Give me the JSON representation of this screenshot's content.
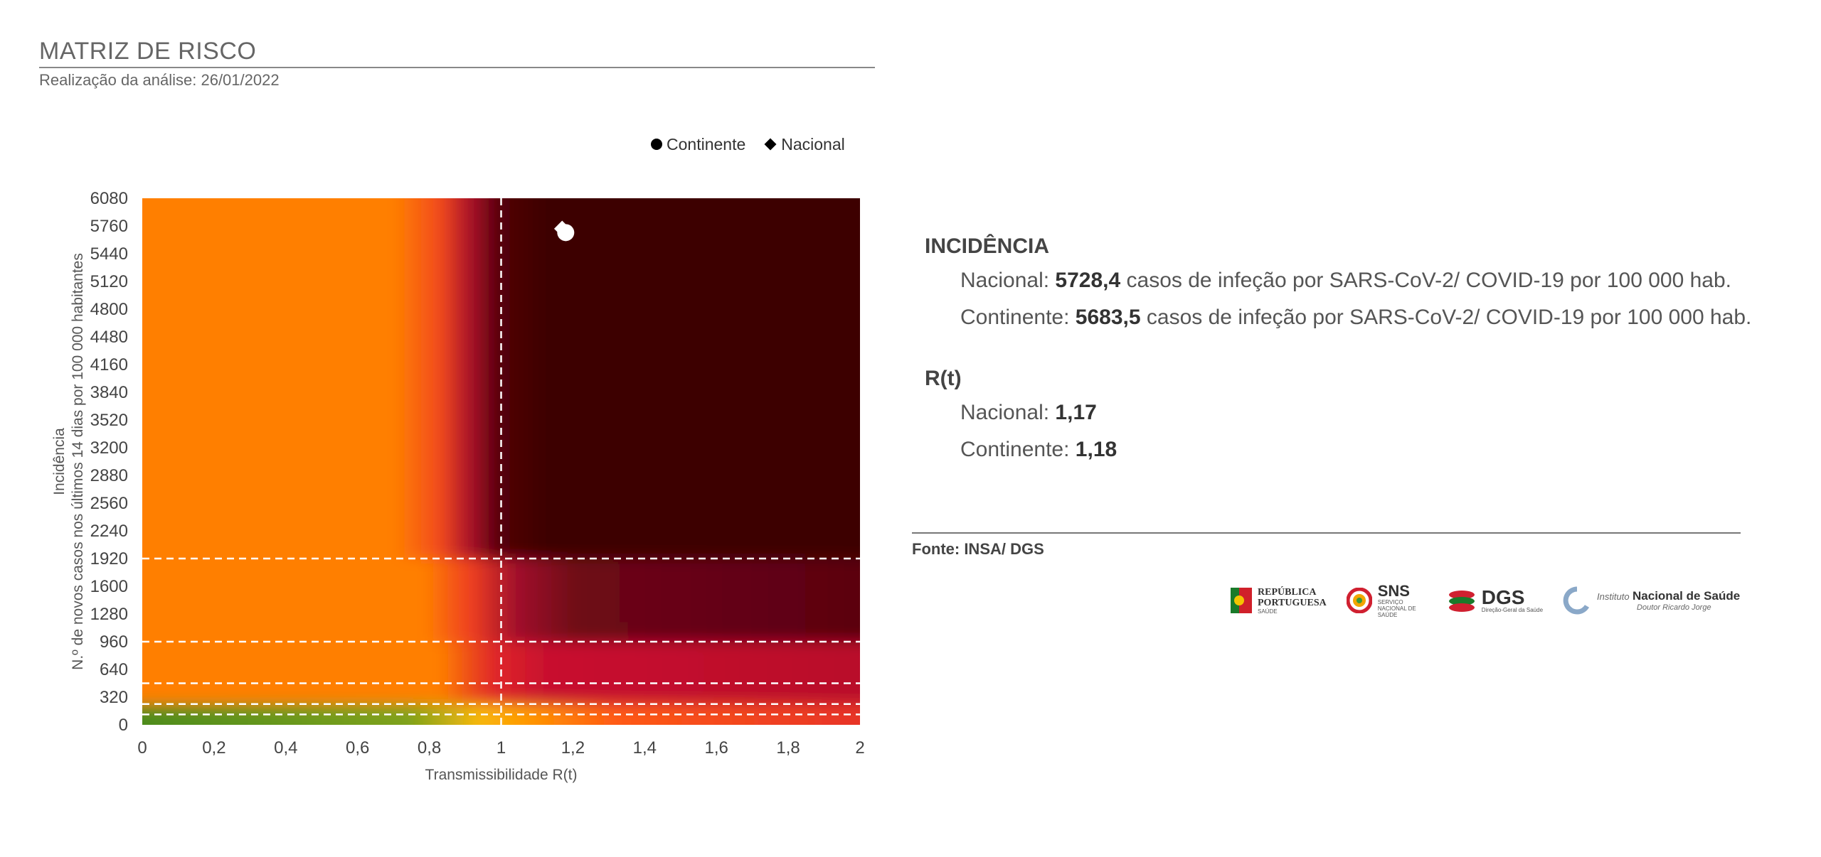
{
  "header": {
    "title": "MATRIZ DE RISCO",
    "subtitle": "Realização da análise: 26/01/2022"
  },
  "chart_data": {
    "type": "scatter",
    "background": "risk-heatmap",
    "xlabel": "Transmissibilidade R(t)",
    "ylabel_line1": "Incidência",
    "ylabel_line2": "N.º de novos casos nos últimos 14 dias por 100 000 habitantes",
    "xlim": [
      0,
      2
    ],
    "ylim": [
      0,
      6080
    ],
    "x_ticks": [
      "0",
      "0,2",
      "0,4",
      "0,6",
      "0,8",
      "1",
      "1,2",
      "1,4",
      "1,6",
      "1,8",
      "2"
    ],
    "y_ticks": [
      "0",
      "320",
      "640",
      "960",
      "1280",
      "1600",
      "1920",
      "2240",
      "2560",
      "2880",
      "3200",
      "3520",
      "3840",
      "4160",
      "4480",
      "4800",
      "5120",
      "5440",
      "5760",
      "6080"
    ],
    "reference_lines": {
      "x": [
        1
      ],
      "y": [
        120,
        240,
        480,
        960,
        1920
      ]
    },
    "legend_position": "top-right",
    "series": [
      {
        "name": "Continente",
        "marker": "circle",
        "x": 1.18,
        "y": 5683.5
      },
      {
        "name": "Nacional",
        "marker": "diamond",
        "x": 1.17,
        "y": 5728.4
      }
    ],
    "colors": {
      "orange": "#ff7f00",
      "dark_red": "#3d0000",
      "crimson": "#c8102e",
      "green": "#4a8a1a"
    }
  },
  "info": {
    "incidencia": {
      "title": "INCIDÊNCIA",
      "nacional": {
        "label": "Nacional:",
        "value": "5728,4",
        "suffix": "casos de infeção por SARS-CoV-2/ COVID-19 por 100 000 hab."
      },
      "continente": {
        "label": "Continente:",
        "value": "5683,5",
        "suffix": "casos de infeção por SARS-CoV-2/ COVID-19 por 100 000 hab."
      }
    },
    "rt": {
      "title": "R(t)",
      "nacional": {
        "label": "Nacional:",
        "value": "1,17"
      },
      "continente": {
        "label": "Continente:",
        "value": "1,18"
      }
    }
  },
  "source": "Fonte: INSA/ DGS",
  "logos": {
    "republica_line1": "REPÚBLICA",
    "republica_line2": "PORTUGUESA",
    "republica_sub": "SAÚDE",
    "sns": "SNS",
    "sns_sub": "SERVIÇO NACIONAL DE SAÚDE",
    "dgs": "DGS",
    "dgs_sub": "Direção-Geral da Saúde",
    "insa_prefix": "Instituto",
    "insa_name": "Nacional de Saúde",
    "insa_sub": "Doutor Ricardo Jorge"
  }
}
